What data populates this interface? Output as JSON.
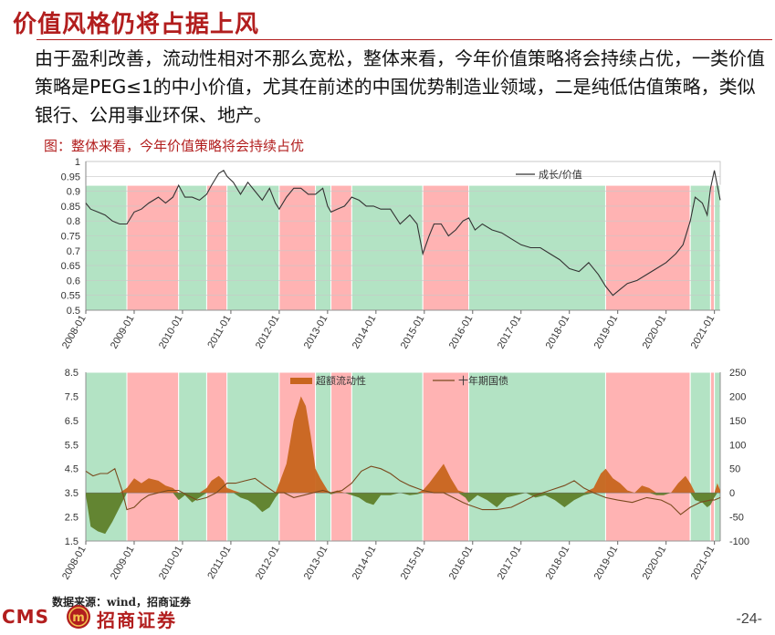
{
  "slide": {
    "title": "价值风格仍将占据上风",
    "body": "由于盈利改善，流动性相对不那么宽松，整体来看，今年价值策略将会持续占优，一类价值策略是PEG≤1的中小价值，尤其在前述的中国优势制造业领域，二是纯低估值策略，类似银行、公用事业环保、地产。",
    "figure_caption": "图：整体来看，今年价值策略将会持续占优",
    "source": "数据来源：wind，招商证券",
    "logo_text": "CMS",
    "logo_seal": "m",
    "logo_cn": "招商证券",
    "page_number": "-24-"
  },
  "colors": {
    "green_band": "#b3e3c4",
    "red_band": "#ffb3b3",
    "growth_value_line": "#333333",
    "excess_liquidity": "#c8651e",
    "excess_liquidity_neg": "#5a7a22",
    "bond_yield": "#7a4a1e",
    "title_red": "#b21e1e"
  },
  "chart_data": [
    {
      "type": "line",
      "x_ticks": [
        "2008-01",
        "2009-01",
        "2010-01",
        "2011-01",
        "2012-01",
        "2013-01",
        "2014-01",
        "2015-01",
        "2016-01",
        "2017-01",
        "2018-01",
        "2019-01",
        "2020-01",
        "2021-01"
      ],
      "ylim": [
        0.5,
        1.0
      ],
      "y_ticks": [
        "0.5",
        "0.55",
        "0.6",
        "0.65",
        "0.7",
        "0.75",
        "0.8",
        "0.85",
        "0.9",
        "0.95",
        "1"
      ],
      "legend": "成长/价值",
      "regimes": [
        {
          "start": 2008.0,
          "end": 2008.85,
          "color": "green"
        },
        {
          "start": 2008.85,
          "end": 2009.92,
          "color": "red"
        },
        {
          "start": 2009.92,
          "end": 2010.5,
          "color": "green"
        },
        {
          "start": 2010.5,
          "end": 2010.92,
          "color": "red"
        },
        {
          "start": 2010.92,
          "end": 2012.0,
          "color": "green"
        },
        {
          "start": 2012.0,
          "end": 2012.75,
          "color": "red"
        },
        {
          "start": 2012.75,
          "end": 2013.07,
          "color": "green"
        },
        {
          "start": 2013.07,
          "end": 2013.5,
          "color": "red"
        },
        {
          "start": 2013.5,
          "end": 2014.97,
          "color": "green"
        },
        {
          "start": 2014.97,
          "end": 2015.92,
          "color": "red"
        },
        {
          "start": 2015.92,
          "end": 2018.75,
          "color": "green"
        },
        {
          "start": 2018.75,
          "end": 2020.5,
          "color": "red"
        },
        {
          "start": 2020.5,
          "end": 2020.92,
          "color": "green"
        },
        {
          "start": 2020.92,
          "end": 2021.0,
          "color": "red"
        },
        {
          "start": 2021.0,
          "end": 2021.12,
          "color": "green"
        }
      ],
      "series": [
        {
          "name": "成长/价值",
          "x": [
            2008.0,
            2008.1,
            2008.25,
            2008.4,
            2008.55,
            2008.7,
            2008.85,
            2009.0,
            2009.15,
            2009.3,
            2009.5,
            2009.65,
            2009.8,
            2009.92,
            2010.05,
            2010.2,
            2010.35,
            2010.5,
            2010.6,
            2010.75,
            2010.85,
            2010.92,
            2011.05,
            2011.2,
            2011.35,
            2011.5,
            2011.65,
            2011.8,
            2011.92,
            2012.0,
            2012.15,
            2012.3,
            2012.45,
            2012.6,
            2012.75,
            2012.9,
            2013.0,
            2013.07,
            2013.2,
            2013.35,
            2013.5,
            2013.65,
            2013.8,
            2013.95,
            2014.1,
            2014.3,
            2014.5,
            2014.7,
            2014.85,
            2014.97,
            2015.1,
            2015.2,
            2015.35,
            2015.5,
            2015.65,
            2015.8,
            2015.92,
            2016.05,
            2016.2,
            2016.4,
            2016.6,
            2016.8,
            2017.0,
            2017.2,
            2017.4,
            2017.6,
            2017.8,
            2018.0,
            2018.2,
            2018.4,
            2018.6,
            2018.75,
            2018.9,
            2019.05,
            2019.2,
            2019.4,
            2019.6,
            2019.8,
            2020.0,
            2020.2,
            2020.35,
            2020.5,
            2020.6,
            2020.75,
            2020.85,
            2020.92,
            2021.0,
            2021.06,
            2021.12
          ],
          "y": [
            0.86,
            0.84,
            0.83,
            0.82,
            0.8,
            0.79,
            0.79,
            0.83,
            0.84,
            0.86,
            0.88,
            0.86,
            0.88,
            0.92,
            0.88,
            0.88,
            0.87,
            0.89,
            0.92,
            0.96,
            0.97,
            0.95,
            0.93,
            0.89,
            0.93,
            0.9,
            0.87,
            0.91,
            0.86,
            0.84,
            0.88,
            0.91,
            0.91,
            0.89,
            0.89,
            0.91,
            0.85,
            0.83,
            0.84,
            0.85,
            0.88,
            0.87,
            0.85,
            0.85,
            0.84,
            0.84,
            0.79,
            0.82,
            0.79,
            0.69,
            0.75,
            0.79,
            0.79,
            0.75,
            0.77,
            0.8,
            0.81,
            0.77,
            0.79,
            0.77,
            0.76,
            0.74,
            0.72,
            0.71,
            0.71,
            0.69,
            0.67,
            0.64,
            0.63,
            0.66,
            0.62,
            0.58,
            0.55,
            0.57,
            0.59,
            0.6,
            0.62,
            0.64,
            0.66,
            0.69,
            0.72,
            0.8,
            0.88,
            0.86,
            0.82,
            0.91,
            0.97,
            0.92,
            0.87
          ]
        }
      ]
    },
    {
      "type": "area",
      "x_ticks": [
        "2008-01",
        "2009-01",
        "2010-01",
        "2011-01",
        "2012-01",
        "2013-01",
        "2014-01",
        "2015-01",
        "2016-01",
        "2017-01",
        "2018-01",
        "2019-01",
        "2020-01",
        "2021-01"
      ],
      "y_left": {
        "ylim": [
          1.5,
          8.5
        ],
        "ticks": [
          "1.5",
          "2.5",
          "3.5",
          "4.5",
          "5.5",
          "6.5",
          "7.5",
          "8.5"
        ]
      },
      "y_right": {
        "ylim": [
          -100,
          250
        ],
        "ticks": [
          "-100",
          "-50",
          "0",
          "50",
          "100",
          "150",
          "200",
          "250"
        ]
      },
      "legend": [
        "超额流动性",
        "十年期国债"
      ],
      "regimes": [
        {
          "start": 2008.0,
          "end": 2008.85,
          "color": "green"
        },
        {
          "start": 2008.85,
          "end": 2009.92,
          "color": "red"
        },
        {
          "start": 2009.92,
          "end": 2010.5,
          "color": "green"
        },
        {
          "start": 2010.5,
          "end": 2010.92,
          "color": "red"
        },
        {
          "start": 2010.92,
          "end": 2012.0,
          "color": "green"
        },
        {
          "start": 2012.0,
          "end": 2012.75,
          "color": "red"
        },
        {
          "start": 2012.75,
          "end": 2013.07,
          "color": "green"
        },
        {
          "start": 2013.07,
          "end": 2013.5,
          "color": "red"
        },
        {
          "start": 2013.5,
          "end": 2014.97,
          "color": "green"
        },
        {
          "start": 2014.97,
          "end": 2015.92,
          "color": "red"
        },
        {
          "start": 2015.92,
          "end": 2018.75,
          "color": "green"
        },
        {
          "start": 2018.75,
          "end": 2020.5,
          "color": "red"
        },
        {
          "start": 2020.5,
          "end": 2020.92,
          "color": "green"
        },
        {
          "start": 2020.92,
          "end": 2021.0,
          "color": "red"
        },
        {
          "start": 2021.0,
          "end": 2021.12,
          "color": "green"
        }
      ],
      "series": [
        {
          "name": "超额流动性",
          "axis": "right",
          "x": [
            2008.0,
            2008.1,
            2008.25,
            2008.4,
            2008.55,
            2008.7,
            2008.85,
            2009.0,
            2009.15,
            2009.3,
            2009.5,
            2009.65,
            2009.8,
            2009.92,
            2010.05,
            2010.2,
            2010.35,
            2010.5,
            2010.6,
            2010.75,
            2010.85,
            2010.92,
            2011.05,
            2011.2,
            2011.35,
            2011.5,
            2011.65,
            2011.8,
            2011.92,
            2012.0,
            2012.15,
            2012.3,
            2012.45,
            2012.55,
            2012.65,
            2012.75,
            2012.85,
            2013.0,
            2013.07,
            2013.2,
            2013.35,
            2013.5,
            2013.65,
            2013.8,
            2013.95,
            2014.1,
            2014.3,
            2014.5,
            2014.7,
            2014.85,
            2014.97,
            2015.1,
            2015.25,
            2015.4,
            2015.55,
            2015.7,
            2015.85,
            2015.92,
            2016.1,
            2016.3,
            2016.5,
            2016.7,
            2016.9,
            2017.1,
            2017.3,
            2017.5,
            2017.7,
            2017.9,
            2018.1,
            2018.3,
            2018.5,
            2018.65,
            2018.75,
            2018.9,
            2019.05,
            2019.2,
            2019.35,
            2019.5,
            2019.65,
            2019.8,
            2019.95,
            2020.1,
            2020.25,
            2020.4,
            2020.5,
            2020.6,
            2020.75,
            2020.85,
            2020.92,
            2021.0,
            2021.06,
            2021.12
          ],
          "y": [
            -5,
            -70,
            -80,
            -85,
            -60,
            -30,
            10,
            30,
            20,
            30,
            25,
            15,
            10,
            -15,
            -5,
            -20,
            -10,
            10,
            25,
            35,
            25,
            10,
            5,
            -10,
            -15,
            -25,
            -40,
            -30,
            -10,
            20,
            60,
            150,
            200,
            180,
            120,
            50,
            30,
            5,
            -3,
            5,
            0,
            -5,
            -10,
            -20,
            -25,
            -5,
            -5,
            0,
            -5,
            -3,
            5,
            20,
            40,
            60,
            30,
            5,
            -10,
            -20,
            -5,
            -15,
            -30,
            -10,
            -5,
            0,
            -10,
            -5,
            -15,
            -30,
            -15,
            -5,
            10,
            40,
            50,
            30,
            20,
            5,
            0,
            15,
            10,
            -5,
            -5,
            0,
            20,
            35,
            20,
            -15,
            -20,
            -30,
            -25,
            -10,
            20,
            5
          ]
        },
        {
          "name": "十年期国债",
          "axis": "left",
          "x": [
            2008.0,
            2008.15,
            2008.3,
            2008.45,
            2008.6,
            2008.75,
            2008.85,
            2009.0,
            2009.15,
            2009.3,
            2009.5,
            2009.7,
            2009.92,
            2010.1,
            2010.3,
            2010.5,
            2010.7,
            2010.92,
            2011.1,
            2011.3,
            2011.5,
            2011.7,
            2011.92,
            2012.1,
            2012.3,
            2012.5,
            2012.7,
            2012.9,
            2013.07,
            2013.3,
            2013.5,
            2013.7,
            2013.9,
            2014.1,
            2014.3,
            2014.5,
            2014.7,
            2014.97,
            2015.2,
            2015.4,
            2015.6,
            2015.8,
            2015.92,
            2016.2,
            2016.5,
            2016.8,
            2017.0,
            2017.3,
            2017.6,
            2017.9,
            2018.1,
            2018.3,
            2018.5,
            2018.75,
            2019.0,
            2019.3,
            2019.6,
            2019.9,
            2020.1,
            2020.3,
            2020.5,
            2020.7,
            2020.92,
            2021.0,
            2021.12
          ],
          "y": [
            4.4,
            4.2,
            4.3,
            4.3,
            4.5,
            3.6,
            2.8,
            2.9,
            3.2,
            3.4,
            3.5,
            3.6,
            3.6,
            3.4,
            3.2,
            3.3,
            3.5,
            3.9,
            3.9,
            4.0,
            4.1,
            3.8,
            3.5,
            3.5,
            3.3,
            3.4,
            3.5,
            3.6,
            3.5,
            3.6,
            3.9,
            4.4,
            4.6,
            4.5,
            4.3,
            4.0,
            3.8,
            3.6,
            3.5,
            3.5,
            3.3,
            3.1,
            3.0,
            2.8,
            2.8,
            2.9,
            3.1,
            3.4,
            3.6,
            3.8,
            4.0,
            3.7,
            3.5,
            3.3,
            3.2,
            3.1,
            3.3,
            3.2,
            3.0,
            2.6,
            2.9,
            3.1,
            3.2,
            3.2,
            3.3
          ]
        }
      ]
    }
  ]
}
